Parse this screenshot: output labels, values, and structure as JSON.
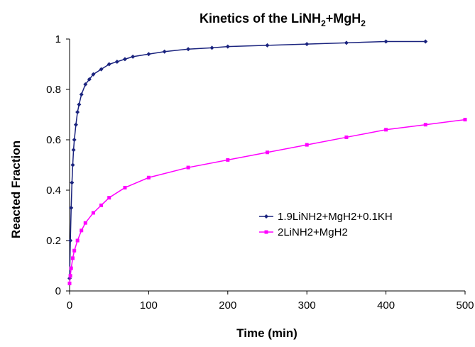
{
  "chart_data": {
    "type": "scatter",
    "title": "Kinetics of the LiNH",
    "title_sub1": "2",
    "title_mid": "+MgH",
    "title_sub2": "2",
    "xlabel": "Time (min)",
    "ylabel": "Reacted Fraction",
    "xlim": [
      0,
      500
    ],
    "ylim": [
      0,
      1
    ],
    "x_ticks": [
      "0",
      "100",
      "200",
      "300",
      "400",
      "500"
    ],
    "y_ticks": [
      "0",
      "0.2",
      "0.4",
      "0.6",
      "0.8",
      "1"
    ],
    "grid": false,
    "legend_position": "center-right",
    "series": [
      {
        "name": "1.9LiNH2+MgH2+0.1KH",
        "color": "#1a237e",
        "marker": "diamond",
        "x": [
          0,
          1,
          2,
          3,
          4,
          5,
          6,
          8,
          10,
          12,
          15,
          20,
          25,
          30,
          40,
          50,
          60,
          70,
          80,
          100,
          120,
          150,
          180,
          200,
          250,
          300,
          350,
          400,
          450
        ],
        "y": [
          0.05,
          0.2,
          0.33,
          0.43,
          0.5,
          0.56,
          0.6,
          0.66,
          0.71,
          0.74,
          0.78,
          0.82,
          0.84,
          0.86,
          0.88,
          0.9,
          0.91,
          0.92,
          0.93,
          0.94,
          0.95,
          0.96,
          0.965,
          0.97,
          0.975,
          0.98,
          0.985,
          0.99,
          0.99
        ]
      },
      {
        "name": "2LiNH2+MgH2",
        "color": "#ff00ff",
        "marker": "square",
        "x": [
          0,
          1,
          2,
          4,
          6,
          10,
          15,
          20,
          30,
          40,
          50,
          70,
          100,
          150,
          200,
          250,
          300,
          350,
          400,
          450,
          500
        ],
        "y": [
          0.03,
          0.06,
          0.09,
          0.13,
          0.16,
          0.2,
          0.24,
          0.27,
          0.31,
          0.34,
          0.37,
          0.41,
          0.45,
          0.49,
          0.52,
          0.55,
          0.58,
          0.61,
          0.64,
          0.66,
          0.68
        ]
      }
    ]
  }
}
